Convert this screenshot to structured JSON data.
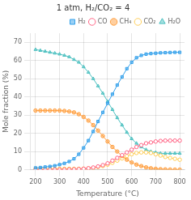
{
  "chart_data": {
    "type": "line",
    "title": "1 atm, H₂/CO₂ = 4",
    "x_label": "Temperature (°C)",
    "y_label": "Mole fraction (%)",
    "x": [
      200,
      220,
      240,
      260,
      280,
      300,
      320,
      340,
      360,
      380,
      400,
      420,
      440,
      460,
      480,
      500,
      520,
      540,
      560,
      580,
      600,
      620,
      640,
      660,
      680,
      700,
      720,
      740,
      760,
      780,
      800
    ],
    "series": [
      {
        "name": "H₂",
        "marker": "square",
        "values": [
          1.0,
          1.2,
          1.5,
          1.8,
          2.2,
          2.8,
          3.5,
          4.5,
          6.0,
          8.5,
          12.0,
          16.0,
          21.0,
          26.5,
          31.5,
          36.5,
          41.5,
          46.5,
          51.0,
          55.5,
          59.0,
          61.5,
          62.8,
          63.5,
          63.8,
          64.0,
          64.2,
          64.3,
          64.4,
          64.5,
          64.5
        ]
      },
      {
        "name": "CO",
        "marker": "open_circle",
        "values": [
          0.0,
          0.0,
          0.0,
          0.0,
          0.0,
          0.0,
          0.05,
          0.1,
          0.2,
          0.3,
          0.5,
          0.8,
          1.2,
          1.8,
          2.5,
          3.5,
          5.0,
          6.5,
          8.0,
          9.5,
          11.0,
          12.5,
          13.5,
          14.5,
          15.0,
          15.5,
          15.8,
          16.0,
          16.0,
          16.0,
          16.0
        ]
      },
      {
        "name": "CH₄",
        "marker": "circle",
        "values": [
          32.5,
          32.5,
          32.5,
          32.5,
          32.5,
          32.5,
          32.3,
          32.0,
          31.5,
          30.5,
          29.0,
          27.0,
          24.5,
          21.5,
          18.5,
          15.5,
          12.5,
          10.0,
          7.5,
          5.5,
          4.0,
          2.8,
          2.0,
          1.3,
          0.8,
          0.5,
          0.3,
          0.2,
          0.1,
          0.05,
          0.02
        ]
      },
      {
        "name": "CO₂",
        "marker": "open_circle",
        "values": [
          0.5,
          0.5,
          0.5,
          0.5,
          0.5,
          0.5,
          0.5,
          0.5,
          0.5,
          0.5,
          0.6,
          0.8,
          1.0,
          1.5,
          2.0,
          2.8,
          3.8,
          5.0,
          6.2,
          7.5,
          8.5,
          9.2,
          9.5,
          9.5,
          9.2,
          8.5,
          7.8,
          7.0,
          6.5,
          6.0,
          5.5
        ]
      },
      {
        "name": "H₂O",
        "marker": "triangle",
        "values": [
          66.0,
          65.5,
          65.0,
          64.5,
          64.0,
          63.5,
          62.8,
          62.0,
          60.5,
          59.0,
          56.5,
          53.5,
          50.0,
          46.0,
          42.0,
          37.5,
          33.0,
          28.5,
          24.5,
          20.5,
          17.0,
          14.5,
          12.5,
          11.0,
          10.0,
          9.5,
          9.0,
          9.0,
          9.0,
          9.0,
          9.0
        ]
      }
    ],
    "xlim": [
      180,
      820
    ],
    "xticks": [
      200,
      300,
      400,
      500,
      600,
      700,
      800
    ],
    "ylim": [
      0,
      75
    ],
    "yticks": [
      0,
      10,
      20,
      30,
      40,
      50,
      60,
      70
    ],
    "legend": "upper right"
  }
}
